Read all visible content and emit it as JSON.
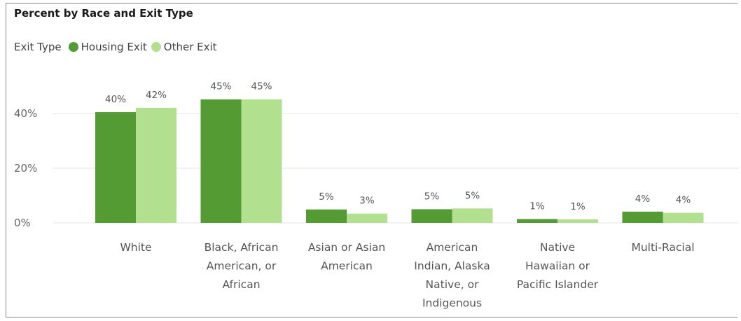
{
  "chart_data": {
    "type": "bar",
    "title": "Percent by Race and Exit Type",
    "legend_title": "Exit Type",
    "legend_position": "top-left",
    "grid": true,
    "categories": [
      "White",
      "Black, African American, or African",
      "Asian or Asian American",
      "American Indian, Alaska Native, or Indigenous",
      "Native Hawaiian or Pacific Islander",
      "Multi-Racial"
    ],
    "category_lines": [
      [
        "White"
      ],
      [
        "Black, African",
        "American, or",
        "African"
      ],
      [
        "Asian or Asian",
        "American"
      ],
      [
        "American",
        "Indian, Alaska",
        "Native, or",
        "Indigenous"
      ],
      [
        "Native",
        "Hawaiian or",
        "Pacific Islander"
      ],
      [
        "Multi-Racial"
      ]
    ],
    "series": [
      {
        "name": "Housing Exit",
        "color": "#549b34",
        "values": [
          40.5,
          45.2,
          4.9,
          5.0,
          1.4,
          4.1
        ],
        "labels": [
          "40%",
          "45%",
          "5%",
          "5%",
          "1%",
          "4%"
        ]
      },
      {
        "name": "Other Exit",
        "color": "#b1e08e",
        "values": [
          42.1,
          45.2,
          3.4,
          5.3,
          1.3,
          3.7
        ],
        "labels": [
          "42%",
          "45%",
          "3%",
          "5%",
          "1%",
          "4%"
        ]
      }
    ],
    "ylim": [
      0,
      50
    ],
    "yticks": [
      0,
      20,
      40
    ],
    "ytick_labels": [
      "0%",
      "20%",
      "40%"
    ],
    "xlabel": "",
    "ylabel": ""
  }
}
